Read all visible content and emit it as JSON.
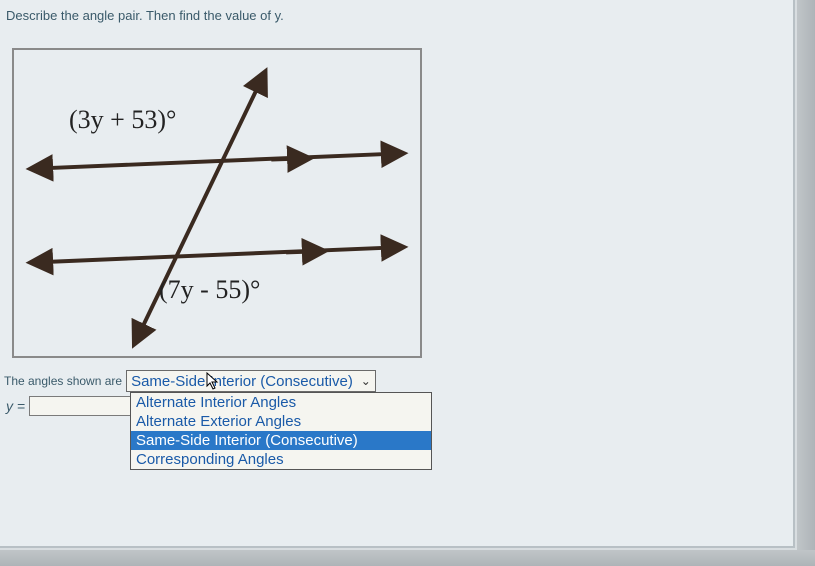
{
  "prompt": "Describe the angle pair. Then find the value of y.",
  "labels": {
    "topAngle": "(3y + 53)°",
    "bottomAngle": "(7y - 55)°",
    "anglesShown": "The angles shown are",
    "yEquals": "y ="
  },
  "dropdown": {
    "selected": "Same-Side Interior (Consecutive)",
    "options": [
      "Alternate Interior Angles",
      "Alternate Exterior Angles",
      "Same-Side Interior (Consecutive)",
      "Corresponding Angles"
    ],
    "highlightedIndex": 2
  },
  "input": {
    "yValue": ""
  },
  "colors": {
    "line": "#3a2a20",
    "text": "#3a5a6a",
    "link": "#1a5aa8",
    "highlight": "#2a78c8",
    "bg": "#e8edf0"
  }
}
